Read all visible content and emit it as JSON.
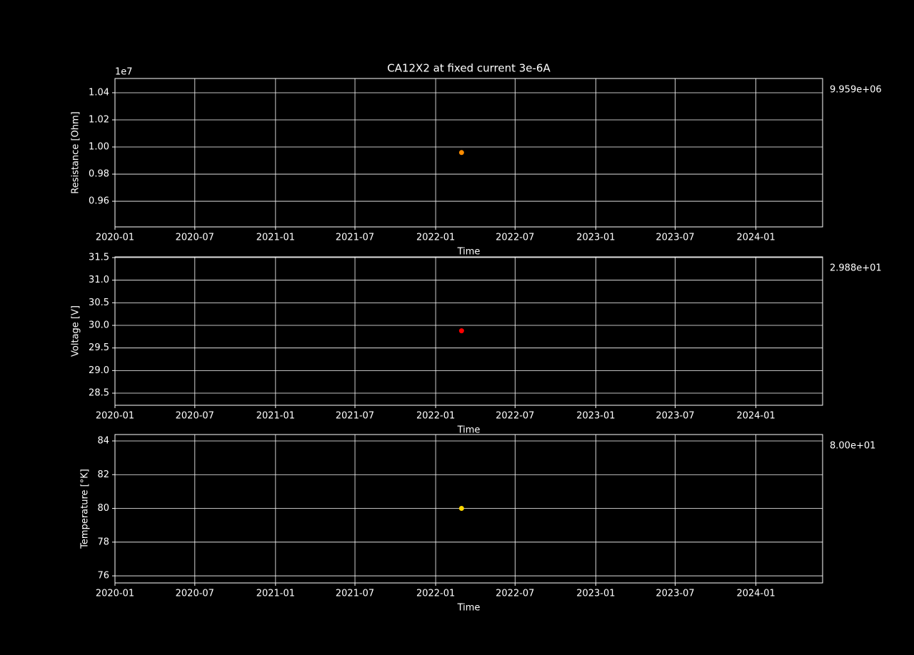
{
  "chart_data": [
    {
      "type": "scatter",
      "title": "CA12X2 at fixed current 3e-6A",
      "offset_label": "1e7",
      "x_label": "Time",
      "y_label": "Resistance [Ohm]",
      "x": [
        "2022-03"
      ],
      "values": [
        9959000
      ],
      "value_labels": [
        "9.959e+06"
      ],
      "color": "#ff8c00",
      "xlim": [
        "2020-01",
        "2024-06"
      ],
      "xticks": [
        "2020-01",
        "2020-07",
        "2021-01",
        "2021-07",
        "2022-01",
        "2022-07",
        "2023-01",
        "2023-07",
        "2024-01"
      ],
      "ylim": [
        9411000,
        10505000
      ],
      "yticks": [
        {
          "value": 9600000,
          "label": "0.96"
        },
        {
          "value": 9800000,
          "label": "0.98"
        },
        {
          "value": 10000000,
          "label": "1.00"
        },
        {
          "value": 10200000,
          "label": "1.02"
        },
        {
          "value": 10400000,
          "label": "1.04"
        }
      ],
      "grid": true
    },
    {
      "type": "scatter",
      "x_label": "Time",
      "y_label": "Voltage [V]",
      "x": [
        "2022-03"
      ],
      "values": [
        29.88
      ],
      "value_labels": [
        "2.988e+01"
      ],
      "color": "#ff0000",
      "xlim": [
        "2020-01",
        "2024-06"
      ],
      "xticks": [
        "2020-01",
        "2020-07",
        "2021-01",
        "2021-07",
        "2022-01",
        "2022-07",
        "2023-01",
        "2023-07",
        "2024-01"
      ],
      "ylim": [
        28.232,
        31.516
      ],
      "yticks": [
        28.5,
        {
          "value": 29,
          "label": "29.0"
        },
        29.5,
        {
          "value": 30,
          "label": "30.0"
        },
        30.5,
        {
          "value": 31,
          "label": "31.0"
        },
        31.5
      ],
      "grid": true
    },
    {
      "type": "scatter",
      "x_label": "Time",
      "y_label": "Temperature [°K]",
      "x": [
        "2022-03"
      ],
      "values": [
        80.0
      ],
      "value_labels": [
        "8.00e+01"
      ],
      "color": "#ffd700",
      "xlim": [
        "2020-01",
        "2024-06"
      ],
      "xticks": [
        "2020-01",
        "2020-07",
        "2021-01",
        "2021-07",
        "2022-01",
        "2022-07",
        "2023-01",
        "2023-07",
        "2024-01"
      ],
      "ylim": [
        75.58,
        84.38
      ],
      "yticks": [
        76,
        78,
        80,
        82,
        84
      ],
      "grid": true
    }
  ]
}
